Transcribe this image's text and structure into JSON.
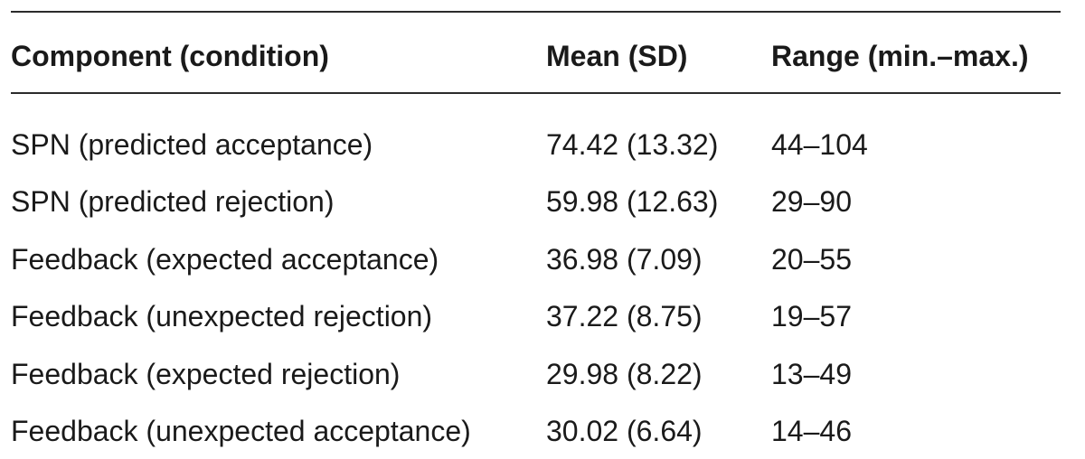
{
  "table": {
    "headers": {
      "component": "Component (condition)",
      "mean": "Mean (SD)",
      "range": "Range (min.–max.)"
    },
    "rows": [
      {
        "component": "SPN (predicted acceptance)",
        "mean": "74.42 (13.32)",
        "range": "44–104"
      },
      {
        "component": "SPN (predicted rejection)",
        "mean": "59.98 (12.63)",
        "range": "29–90"
      },
      {
        "component": "Feedback (expected acceptance)",
        "mean": "36.98 (7.09)",
        "range": "20–55"
      },
      {
        "component": "Feedback (unexpected rejection)",
        "mean": "37.22 (8.75)",
        "range": "19–57"
      },
      {
        "component": "Feedback (expected rejection)",
        "mean": "29.98 (8.22)",
        "range": "13–49"
      },
      {
        "component": "Feedback (unexpected acceptance)",
        "mean": "30.02 (6.64)",
        "range": "14–46"
      }
    ]
  }
}
